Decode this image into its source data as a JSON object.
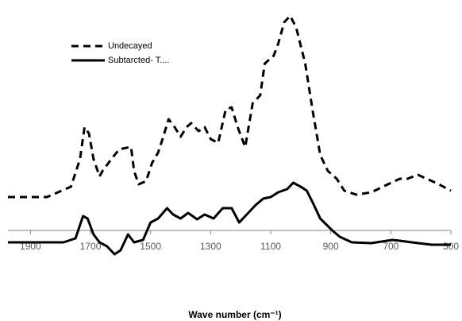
{
  "chart_data": {
    "type": "line",
    "x_label": "Wave number (cm⁻¹)",
    "xlim": [
      1975,
      500
    ],
    "xticks": [
      1900,
      1700,
      1500,
      1300,
      1100,
      900,
      700,
      500
    ],
    "ylim": [
      -40,
      280
    ],
    "legend_position": "upper left",
    "series": [
      {
        "name": "Undecayed",
        "color": "#000000",
        "line_style": "dashed",
        "x": [
          1975,
          1845,
          1765,
          1735,
          1720,
          1705,
          1690,
          1670,
          1660,
          1630,
          1605,
          1580,
          1565,
          1555,
          1540,
          1515,
          1495,
          1475,
          1460,
          1440,
          1420,
          1400,
          1380,
          1365,
          1340,
          1320,
          1300,
          1275,
          1250,
          1230,
          1210,
          1185,
          1160,
          1135,
          1120,
          1090,
          1075,
          1055,
          1035,
          1015,
          985,
          960,
          935,
          910,
          880,
          855,
          815,
          765,
          710,
          670,
          645,
          610,
          580,
          540,
          500
        ],
        "values": [
          42,
          42,
          55,
          90,
          130,
          122,
          90,
          68,
          75,
          90,
          102,
          104,
          105,
          75,
          58,
          62,
          85,
          98,
          115,
          140,
          130,
          118,
          130,
          135,
          125,
          130,
          115,
          110,
          152,
          155,
          130,
          105,
          160,
          170,
          210,
          220,
          235,
          262,
          270,
          255,
          210,
          150,
          95,
          75,
          65,
          50,
          45,
          48,
          58,
          65,
          65,
          70,
          65,
          58,
          50
        ]
      },
      {
        "name": "Subtarcted- T....",
        "color": "#000000",
        "line_style": "solid",
        "x": [
          1975,
          1790,
          1750,
          1725,
          1710,
          1690,
          1670,
          1645,
          1620,
          1600,
          1575,
          1555,
          1525,
          1500,
          1475,
          1445,
          1425,
          1400,
          1375,
          1345,
          1320,
          1290,
          1260,
          1230,
          1205,
          1180,
          1150,
          1125,
          1100,
          1075,
          1045,
          1025,
          1000,
          980,
          960,
          935,
          895,
          870,
          830,
          765,
          695,
          670,
          630,
          565,
          500
        ],
        "values": [
          -15,
          -15,
          -10,
          18,
          15,
          -5,
          -15,
          -20,
          -30,
          -25,
          -5,
          -15,
          -12,
          10,
          15,
          28,
          20,
          15,
          22,
          14,
          20,
          15,
          28,
          28,
          10,
          20,
          32,
          40,
          42,
          48,
          52,
          60,
          55,
          50,
          35,
          15,
          0,
          -8,
          -15,
          -16,
          -12,
          -13,
          -15,
          -18,
          -18
        ]
      }
    ]
  }
}
